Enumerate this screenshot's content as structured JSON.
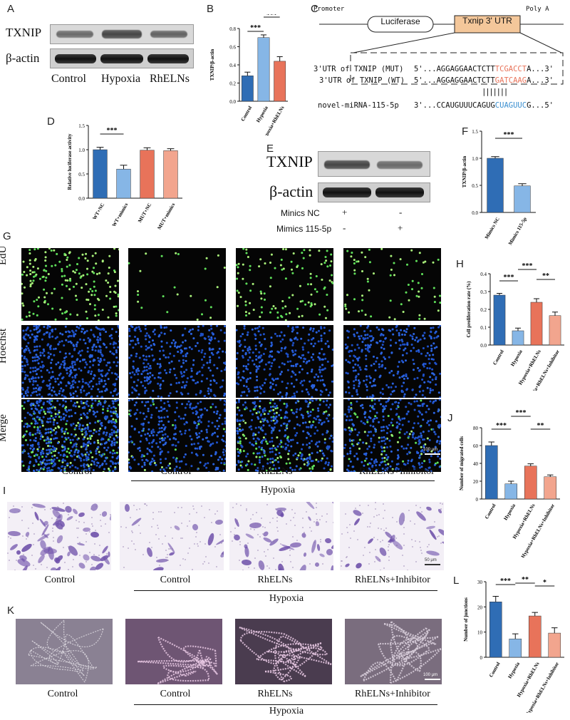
{
  "panels": {
    "A": "A",
    "B": "B",
    "C": "C",
    "D": "D",
    "E": "E",
    "F": "F",
    "G": "G",
    "H": "H",
    "I": "I",
    "J": "J",
    "K": "K",
    "L": "L"
  },
  "panelA": {
    "rows": [
      "TXNIP",
      "β-actin"
    ],
    "lanes": [
      "Control",
      "Hypoxia",
      "RhELNs"
    ]
  },
  "panelC": {
    "promoter": "Promoter",
    "luciferase": "Luciferase",
    "utr": "Txnip 3' UTR",
    "polya": "Poly A",
    "mut_label": "3'UTR of TXNIP (MUT)",
    "mut_prefix": "5'...AGGAGGAACTCTT",
    "mut_site": "TCGACCT",
    "mut_suffix": "A...3'",
    "wt_label": "3'UTR of TXNIP (WT)",
    "wt_prefix": "5'...AGGAGGAACTCTT",
    "wt_site": "GATCAAG",
    "wt_suffix": "A...3'",
    "bars": "|||||||",
    "mirna_label": "novel-miRNA-115-5p",
    "mirna_prefix": "3'...CCAUGUUUCAGUG",
    "mirna_site": "CUAGUUC",
    "mirna_suffix": "G...5'"
  },
  "panelE": {
    "rows": [
      "TXNIP",
      "β-actin"
    ],
    "cond1": "Minics NC",
    "cond2": "Mimics 115-5p",
    "plus": "+",
    "minus": "-"
  },
  "panelG": {
    "rows": [
      "EdU",
      "Hoechst",
      "Merge"
    ],
    "cols": [
      "Control",
      "Control",
      "RhELNs",
      "RhELNs+Inhibitor"
    ],
    "group": "Hypoxia",
    "scale": "100 μm"
  },
  "panelI": {
    "cols": [
      "Control",
      "Control",
      "RhELNs",
      "RhELNs+Inhibitor"
    ],
    "group": "Hypoxia",
    "scale": "50 μm"
  },
  "panelK": {
    "cols": [
      "Control",
      "Control",
      "RhELNs",
      "RhELNs+Inhibitor"
    ],
    "group": "Hypoxia",
    "scale": "100 μm"
  },
  "colors": {
    "blue": "#2f6db5",
    "lightblue": "#86b6e6",
    "orange": "#e8735a",
    "lightorange": "#f2a58e",
    "utr": "#f4c79a",
    "mut": "#e8735a",
    "mirna": "#3a8fd0"
  },
  "chart_data": [
    {
      "id": "B",
      "type": "bar",
      "categories": [
        "Control",
        "Hypoxia",
        "Hypoxia+RhELNs"
      ],
      "values": [
        0.28,
        0.7,
        0.44
      ],
      "errors": [
        0.04,
        0.03,
        0.05
      ],
      "ylabel": "TXNIP/β-actin",
      "yticks": [
        "0.0",
        "0.2",
        "0.4",
        "0.6",
        "0.8"
      ],
      "ylim": [
        0,
        0.8
      ],
      "sig": [
        {
          "a": 0,
          "b": 1,
          "text": "***"
        },
        {
          "a": 1,
          "b": 2,
          "text": "***"
        }
      ]
    },
    {
      "id": "D",
      "type": "bar",
      "categories": [
        "WT+NC",
        "WT+mimics",
        "MUT+NC",
        "MUT+mimics"
      ],
      "values": [
        1.0,
        0.6,
        0.99,
        0.98
      ],
      "errors": [
        0.05,
        0.08,
        0.05,
        0.04
      ],
      "ylabel": "Relative luciferase activity",
      "yticks": [
        "0.0",
        "0.5",
        "1.0",
        "1.5"
      ],
      "ylim": [
        0,
        1.5
      ],
      "sig": [
        {
          "a": 0,
          "b": 1,
          "text": "***"
        }
      ]
    },
    {
      "id": "F",
      "type": "bar",
      "categories": [
        "Mimics NC",
        "Mimics 115-5p"
      ],
      "values": [
        1.0,
        0.49
      ],
      "errors": [
        0.03,
        0.04
      ],
      "ylabel": "TXNIP/β-actin",
      "yticks": [
        "0.0",
        "0.5",
        "1.0",
        "1.5"
      ],
      "ylim": [
        0,
        1.5
      ],
      "sig": [
        {
          "a": 0,
          "b": 1,
          "text": "***"
        }
      ]
    },
    {
      "id": "H",
      "type": "bar",
      "categories": [
        "Control",
        "Hypoxia",
        "Hypoxia+RhELNs",
        "Hypoxia+RhELNs+Inhibitor"
      ],
      "values": [
        0.28,
        0.08,
        0.24,
        0.165
      ],
      "errors": [
        0.01,
        0.015,
        0.02,
        0.02
      ],
      "ylabel": "Cell proliferation rate (%)",
      "yticks": [
        "0.0",
        "0.1",
        "0.2",
        "0.3",
        "0.4"
      ],
      "ylim": [
        0,
        0.4
      ],
      "sig": [
        {
          "a": 0,
          "b": 1,
          "text": "***"
        },
        {
          "a": 1,
          "b": 2,
          "text": "***"
        },
        {
          "a": 2,
          "b": 3,
          "text": "**"
        }
      ]
    },
    {
      "id": "J",
      "type": "bar",
      "categories": [
        "Control",
        "Hypoxia",
        "Hypoxia+RhELNs",
        "Hypoxia+RhELNs+Inhibitor"
      ],
      "values": [
        60,
        17,
        37,
        25
      ],
      "errors": [
        4,
        3,
        2.5,
        2
      ],
      "ylabel": "Number of migrated cells",
      "yticks": [
        "0",
        "20",
        "40",
        "60",
        "80"
      ],
      "ylim": [
        0,
        80
      ],
      "sig": [
        {
          "a": 0,
          "b": 1,
          "text": "***"
        },
        {
          "a": 1,
          "b": 2,
          "text": "***"
        },
        {
          "a": 2,
          "b": 3,
          "text": "**"
        }
      ]
    },
    {
      "id": "L",
      "type": "bar",
      "categories": [
        "Control",
        "Hypoxia",
        "Hypoxia+RhELNs",
        "Hypoxia+RhELNs+Inhibitor"
      ],
      "values": [
        22,
        7.3,
        16.4,
        9.6
      ],
      "errors": [
        2.2,
        2,
        1.4,
        2.1
      ],
      "ylabel": "Number of junctions",
      "yticks": [
        "0",
        "10",
        "20",
        "30"
      ],
      "ylim": [
        0,
        30
      ],
      "sig": [
        {
          "a": 0,
          "b": 1,
          "text": "***"
        },
        {
          "a": 1,
          "b": 2,
          "text": "**"
        },
        {
          "a": 2,
          "b": 3,
          "text": "*"
        }
      ]
    }
  ]
}
